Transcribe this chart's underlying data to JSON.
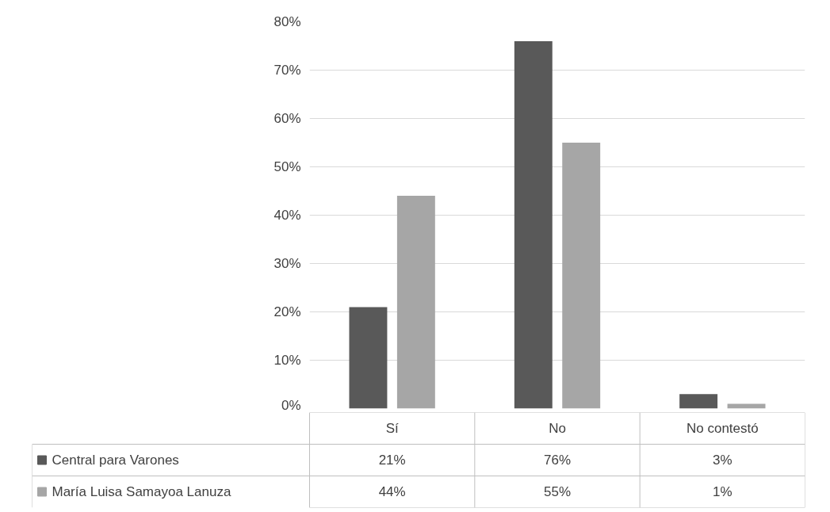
{
  "chart_data": {
    "type": "bar",
    "categories": [
      "Sí",
      "No",
      "No contestó"
    ],
    "series": [
      {
        "name": "Central para Varones",
        "color": "#595959",
        "values": [
          21,
          76,
          3
        ],
        "value_labels": [
          "21%",
          "76%",
          "3%"
        ]
      },
      {
        "name": "María Luisa Samayoa Lanuza",
        "color": "#a6a6a6",
        "values": [
          44,
          55,
          1
        ],
        "value_labels": [
          "44%",
          "55%",
          "1%"
        ]
      }
    ],
    "ylim": [
      0,
      80
    ],
    "yticks": [
      {
        "value": 0,
        "label": "0%"
      },
      {
        "value": 10,
        "label": "10%"
      },
      {
        "value": 20,
        "label": "20%"
      },
      {
        "value": 30,
        "label": "30%"
      },
      {
        "value": 40,
        "label": "40%"
      },
      {
        "value": 50,
        "label": "50%"
      },
      {
        "value": 60,
        "label": "60%"
      },
      {
        "value": 70,
        "label": "70%"
      },
      {
        "value": 80,
        "label": "80%"
      }
    ],
    "grid": "y",
    "legend": "bottom"
  }
}
